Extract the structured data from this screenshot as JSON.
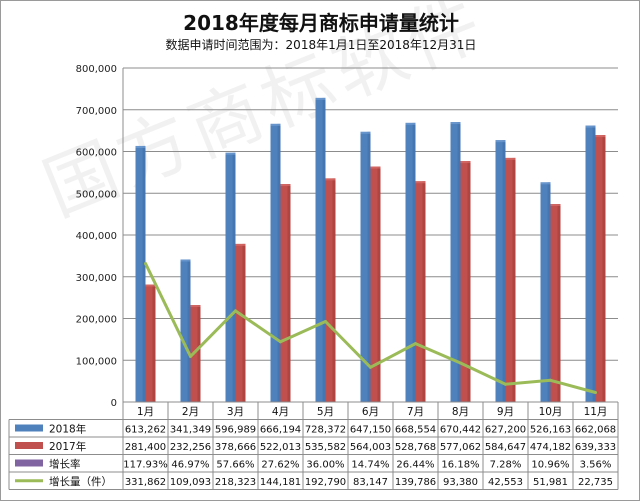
{
  "title": "2018年度每月商标申请量统计",
  "subtitle": "数据申请时间范围为：2018年1月1日至2018年12月31日",
  "watermark": "国方商标软件",
  "chart_data": {
    "type": "bar",
    "categories": [
      "1月",
      "2月",
      "3月",
      "4月",
      "5月",
      "6月",
      "7月",
      "8月",
      "9月",
      "10月",
      "11月"
    ],
    "series": [
      {
        "name": "2018年",
        "kind": "bar",
        "color": "#4f81bd",
        "values": [
          613262,
          341349,
          596989,
          666194,
          728372,
          647150,
          668554,
          670442,
          627200,
          526163,
          662068
        ],
        "labels": [
          "613,262",
          "341,349",
          "596,989",
          "666,194",
          "728,372",
          "647,150",
          "668,554",
          "670,442",
          "627,200",
          "526,163",
          "662,068"
        ]
      },
      {
        "name": "2017年",
        "kind": "bar",
        "color": "#c0504d",
        "values": [
          281400,
          232256,
          378666,
          522013,
          535582,
          564003,
          528768,
          577062,
          584647,
          474182,
          639333
        ],
        "labels": [
          "281,400",
          "232,256",
          "378,666",
          "522,013",
          "535,582",
          "564,003",
          "528,768",
          "577,062",
          "584,647",
          "474,182",
          "639,333"
        ]
      },
      {
        "name": "增长率",
        "kind": "none",
        "color": "#8064a2",
        "values": [
          117.93,
          46.97,
          57.66,
          27.62,
          36.0,
          14.74,
          26.44,
          16.18,
          7.28,
          10.96,
          3.56
        ],
        "labels": [
          "117.93%",
          "46.97%",
          "57.66%",
          "27.62%",
          "36.00%",
          "14.74%",
          "26.44%",
          "16.18%",
          "7.28%",
          "10.96%",
          "3.56%"
        ]
      },
      {
        "name": "增长量（件）",
        "kind": "line",
        "color": "#9bbb59",
        "values": [
          331862,
          109093,
          218323,
          144181,
          192790,
          83147,
          139786,
          93380,
          42553,
          51981,
          22735
        ],
        "labels": [
          "331,862",
          "109,093",
          "218,323",
          "144,181",
          "192,790",
          "83,147",
          "139,786",
          "93,380",
          "42,553",
          "51,981",
          "22,735"
        ]
      }
    ],
    "ylim": [
      0,
      800000
    ],
    "yticks": [
      "0",
      "100,000",
      "200,000",
      "300,000",
      "400,000",
      "500,000",
      "600,000",
      "700,000",
      "800,000"
    ],
    "grid": true,
    "legend": "data-table"
  }
}
